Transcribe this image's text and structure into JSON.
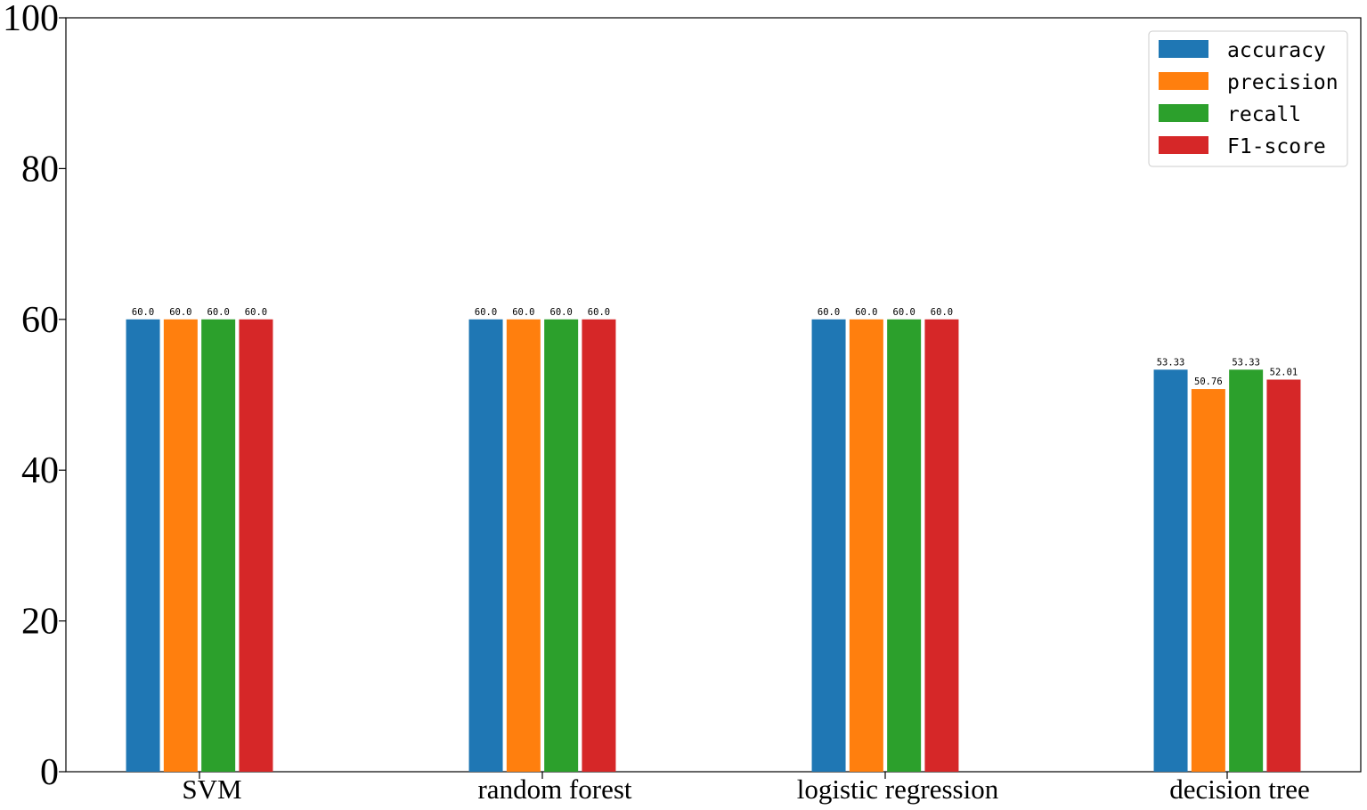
{
  "chart_data": {
    "type": "bar",
    "title": "",
    "xlabel": "",
    "ylabel": "",
    "ylim": [
      0,
      100
    ],
    "yticks": [
      "0",
      "20",
      "40",
      "60",
      "80",
      "100"
    ],
    "grid": false,
    "legend_position": "top-right",
    "categories": [
      "SVM",
      "random forest",
      "logistic regression",
      "decision tree"
    ],
    "series": [
      {
        "name": "accuracy",
        "color": "#1f77b4",
        "values": [
          60.0,
          60.0,
          60.0,
          53.33
        ],
        "labels": [
          "60.0",
          "60.0",
          "60.0",
          "53.33"
        ]
      },
      {
        "name": "precision",
        "color": "#ff7f0e",
        "values": [
          60.0,
          60.0,
          60.0,
          50.76
        ],
        "labels": [
          "60.0",
          "60.0",
          "60.0",
          "50.76"
        ]
      },
      {
        "name": "recall",
        "color": "#2ca02c",
        "values": [
          60.0,
          60.0,
          60.0,
          53.33
        ],
        "labels": [
          "60.0",
          "60.0",
          "60.0",
          "53.33"
        ]
      },
      {
        "name": "F1-score",
        "color": "#d62728",
        "values": [
          60.0,
          60.0,
          60.0,
          52.01
        ],
        "labels": [
          "60.0",
          "60.0",
          "60.0",
          "52.01"
        ]
      }
    ]
  }
}
